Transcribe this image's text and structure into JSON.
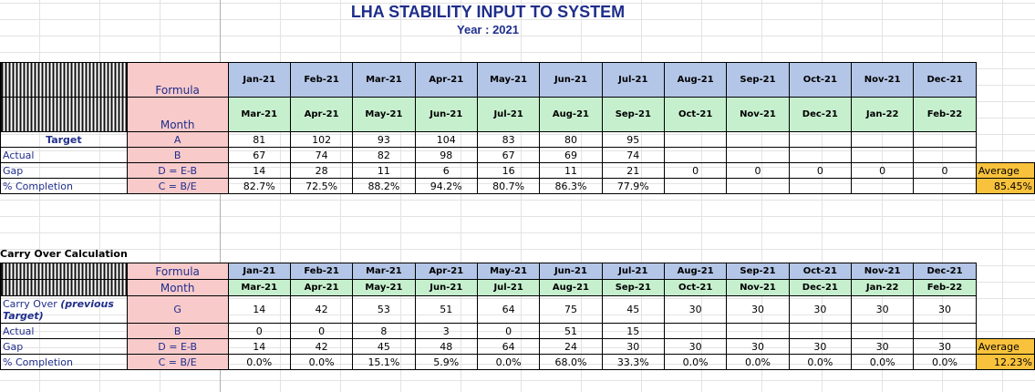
{
  "title": "LHA STABILITY INPUT TO SYSTEM",
  "year_label": "Year :",
  "year_value": "2021",
  "months_top": [
    "Jan-21",
    "Feb-21",
    "Mar-21",
    "Apr-21",
    "May-21",
    "Jun-21",
    "Jul-21",
    "Aug-21",
    "Sep-21",
    "Oct-21",
    "Nov-21",
    "Dec-21"
  ],
  "months_bottom": [
    "Mar-21",
    "Apr-21",
    "May-21",
    "Jun-21",
    "Jul-21",
    "Aug-21",
    "Sep-21",
    "Oct-21",
    "Nov-21",
    "Dec-21",
    "Jan-22",
    "Feb-22"
  ],
  "table1": {
    "formula_label": "Formula",
    "month_label": "Month",
    "rows": [
      {
        "label": "Target",
        "formula": "A",
        "values": [
          "81",
          "102",
          "93",
          "104",
          "83",
          "80",
          "95",
          "",
          "",
          "",
          "",
          ""
        ]
      },
      {
        "label": "Actual",
        "formula": "B",
        "values": [
          "67",
          "74",
          "82",
          "98",
          "67",
          "69",
          "74",
          "",
          "",
          "",
          "",
          ""
        ]
      },
      {
        "label": "Gap",
        "formula": "D = E-B",
        "values": [
          "14",
          "28",
          "11",
          "6",
          "16",
          "11",
          "21",
          "0",
          "0",
          "0",
          "0",
          "0"
        ]
      },
      {
        "label": "% Completion",
        "formula": "C = B/E",
        "values": [
          "82.7%",
          "72.5%",
          "88.2%",
          "94.2%",
          "80.7%",
          "86.3%",
          "77.9%",
          "",
          "",
          "",
          "",
          ""
        ]
      }
    ],
    "average_label": "Average",
    "average_value": "85.45%"
  },
  "table2": {
    "section_title": "Carry Over Calculation",
    "formula_label": "Formula",
    "month_label": "Month",
    "carry_label": "Carry Over",
    "carry_label_em": "(previous Target)",
    "rows": [
      {
        "label": "Carry Over",
        "formula": "G",
        "values": [
          "14",
          "42",
          "53",
          "51",
          "64",
          "75",
          "45",
          "30",
          "30",
          "30",
          "30",
          "30"
        ]
      },
      {
        "label": "Actual",
        "formula": "B",
        "values": [
          "0",
          "0",
          "8",
          "3",
          "0",
          "51",
          "15",
          "",
          "",
          "",
          "",
          ""
        ]
      },
      {
        "label": "Gap",
        "formula": "D = E-B",
        "values": [
          "14",
          "42",
          "45",
          "48",
          "64",
          "24",
          "30",
          "30",
          "30",
          "30",
          "30",
          "30"
        ]
      },
      {
        "label": "% Completion",
        "formula": "C = B/E",
        "values": [
          "0.0%",
          "0.0%",
          "15.1%",
          "5.9%",
          "0.0%",
          "68.0%",
          "33.3%",
          "0.0%",
          "0.0%",
          "0.0%",
          "0.0%",
          "0.0%"
        ]
      }
    ],
    "average_label": "Average",
    "average_value": "12.23%"
  },
  "colors": {
    "header_blue": "#b4c6e7",
    "header_green": "#c6efce",
    "formula_pink": "#f8caca",
    "average_gold": "#f9c23c",
    "title_navy": "#1f2e8c"
  }
}
